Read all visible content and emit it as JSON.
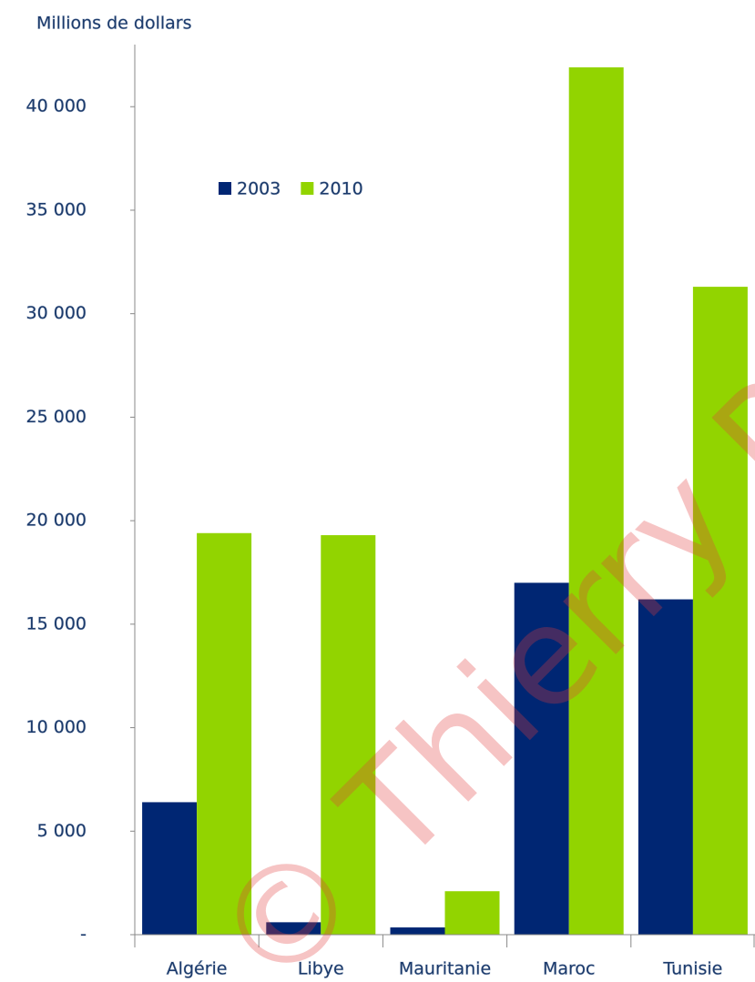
{
  "chart_data": {
    "type": "bar",
    "ylabel": "Millions de dollars",
    "categories": [
      "Algérie",
      "Libye",
      "Mauritanie",
      "Maroc",
      "Tunisie"
    ],
    "series": [
      {
        "name": "2003",
        "color": "#002673",
        "values": [
          6400,
          600,
          350,
          17000,
          16200
        ]
      },
      {
        "name": "2010",
        "color": "#92d400",
        "values": [
          19400,
          19300,
          2100,
          41900,
          31300
        ]
      }
    ],
    "ylim": [
      0,
      43000
    ],
    "yticks": [
      {
        "value": 0,
        "label": "-"
      },
      {
        "value": 5000,
        "label": "5 000"
      },
      {
        "value": 10000,
        "label": "10 000"
      },
      {
        "value": 15000,
        "label": "15 000"
      },
      {
        "value": 20000,
        "label": "20 000"
      },
      {
        "value": 25000,
        "label": "25 000"
      },
      {
        "value": 30000,
        "label": "30 000"
      },
      {
        "value": 35000,
        "label": "35 000"
      },
      {
        "value": 40000,
        "label": "40 000"
      }
    ],
    "grid": false,
    "legend": "upper left",
    "watermark": "© Thierry P"
  }
}
